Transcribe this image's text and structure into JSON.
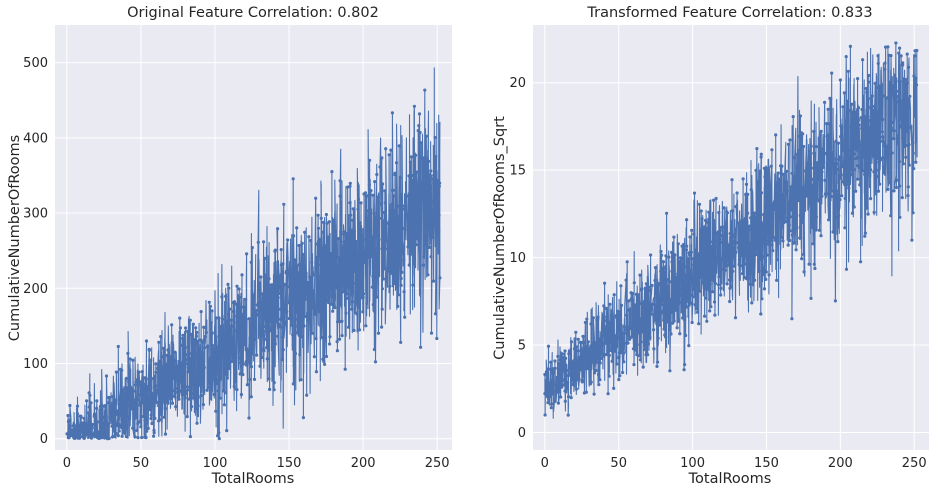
{
  "chart_data": [
    {
      "type": "line",
      "title": "Original Feature Correlation: 0.802",
      "xlabel": "TotalRooms",
      "ylabel": "CumulativeNumberOfRooms",
      "xlim": [
        -8,
        260
      ],
      "ylim": [
        -15,
        550
      ],
      "xticks": [
        0,
        50,
        100,
        150,
        200,
        250
      ],
      "yticks": [
        0,
        100,
        200,
        300,
        400,
        500
      ],
      "grid": true,
      "series": [
        {
          "trend": {
            "x_range": [
              0,
              252
            ],
            "slope": 1.3,
            "intercept": -15,
            "noise": 70
          }
        }
      ],
      "color": "#4c72b0"
    },
    {
      "type": "line",
      "title": "Transformed Feature Correlation: 0.833",
      "xlabel": "TotalRooms",
      "ylabel": "CumulativeNumberOfRooms_Sqrt",
      "xlim": [
        -8,
        260
      ],
      "ylim": [
        -1,
        23.3
      ],
      "xticks": [
        0,
        50,
        100,
        150,
        200,
        250
      ],
      "yticks": [
        0,
        5,
        10,
        15,
        20
      ],
      "grid": true,
      "series": [
        {
          "trend": {
            "x_range": [
              0,
              252
            ],
            "slope": 0.065,
            "intercept": 2.5,
            "noise": 2.8
          }
        }
      ],
      "color": "#4c72b0"
    }
  ]
}
